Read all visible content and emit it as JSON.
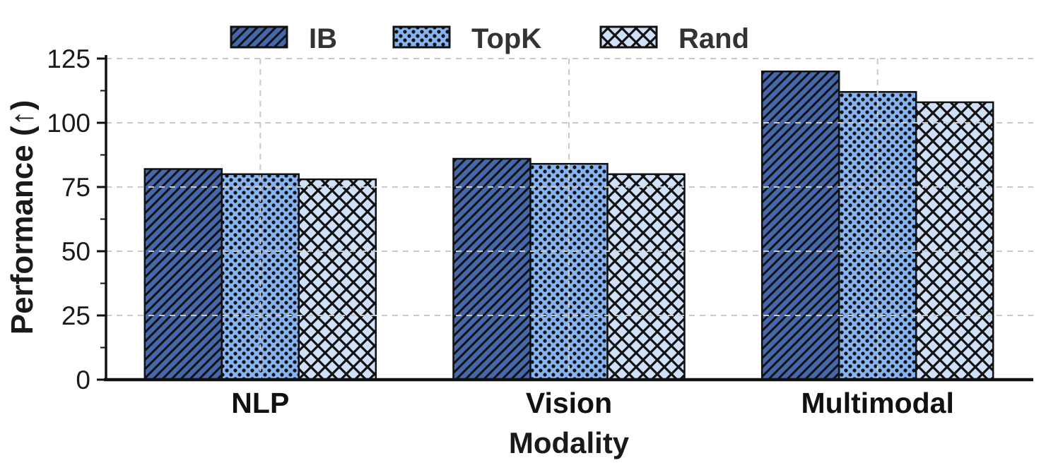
{
  "chart_data": {
    "type": "bar",
    "categories": [
      "NLP",
      "Vision",
      "Multimodal"
    ],
    "series": [
      {
        "name": "IB",
        "values": [
          82,
          86,
          120
        ],
        "fill": "#4468ab",
        "hatch": "diagonal"
      },
      {
        "name": "TopK",
        "values": [
          80,
          84,
          112
        ],
        "fill": "#86b4f2",
        "hatch": "dots"
      },
      {
        "name": "Rand",
        "values": [
          78,
          80,
          108
        ],
        "fill": "#cfe0f7",
        "hatch": "cross"
      }
    ],
    "legend": [
      "IB",
      "TopK",
      "Rand"
    ],
    "legend_position": "top",
    "title": "",
    "xlabel": "Modality",
    "ylabel": "Performance (↑)",
    "yticks": [
      0,
      25,
      50,
      75,
      100,
      125
    ],
    "ylim": [
      0,
      126
    ],
    "grid": true,
    "colors": {
      "hatch": "#111111",
      "edge": "#111111",
      "grid": "#c9c9c9",
      "spine": "#111111",
      "tick_text": "#1a1a1a",
      "legend_text": "#333333"
    }
  }
}
